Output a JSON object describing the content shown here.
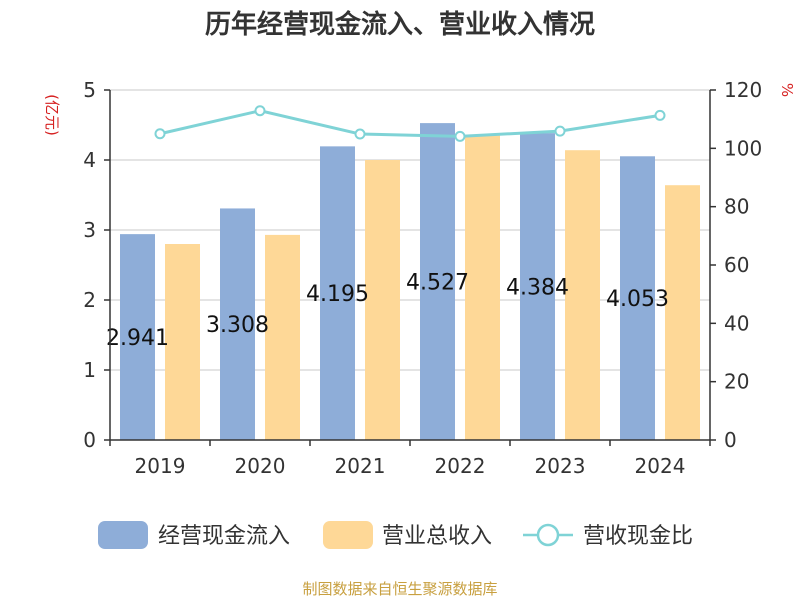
{
  "chart_data": {
    "type": "bar",
    "title": "历年经营现金流入、营业收入情况",
    "categories": [
      "2019",
      "2020",
      "2021",
      "2022",
      "2023",
      "2024"
    ],
    "series": [
      {
        "name": "经营现金流入",
        "kind": "bar",
        "axis": "left",
        "color": "#8eadd8",
        "values": [
          2.941,
          3.308,
          4.195,
          4.527,
          4.384,
          4.053
        ]
      },
      {
        "name": "营业总收入",
        "kind": "bar",
        "axis": "left",
        "color": "#fed897",
        "values": [
          2.8,
          2.93,
          4.0,
          4.35,
          4.14,
          3.64
        ]
      },
      {
        "name": "营收现金比",
        "kind": "line",
        "axis": "right",
        "color": "#7fd3d6",
        "values": [
          105.0,
          112.9,
          104.9,
          104.1,
          105.9,
          111.3
        ]
      }
    ],
    "data_labels": [
      "2.941",
      "3.308",
      "4.195",
      "4.527",
      "4.384",
      "4.053"
    ],
    "y_left": {
      "label": "(亿元)",
      "range": [
        0,
        5
      ],
      "ticks": [
        "0",
        "1",
        "2",
        "3",
        "4",
        "5"
      ]
    },
    "y_right": {
      "label": "%",
      "range": [
        0,
        120
      ],
      "ticks": [
        "0",
        "20",
        "40",
        "60",
        "80",
        "100",
        "120"
      ]
    },
    "grid": true,
    "legend_position": "bottom"
  },
  "source_text": "制图数据来自恒生聚源数据库"
}
